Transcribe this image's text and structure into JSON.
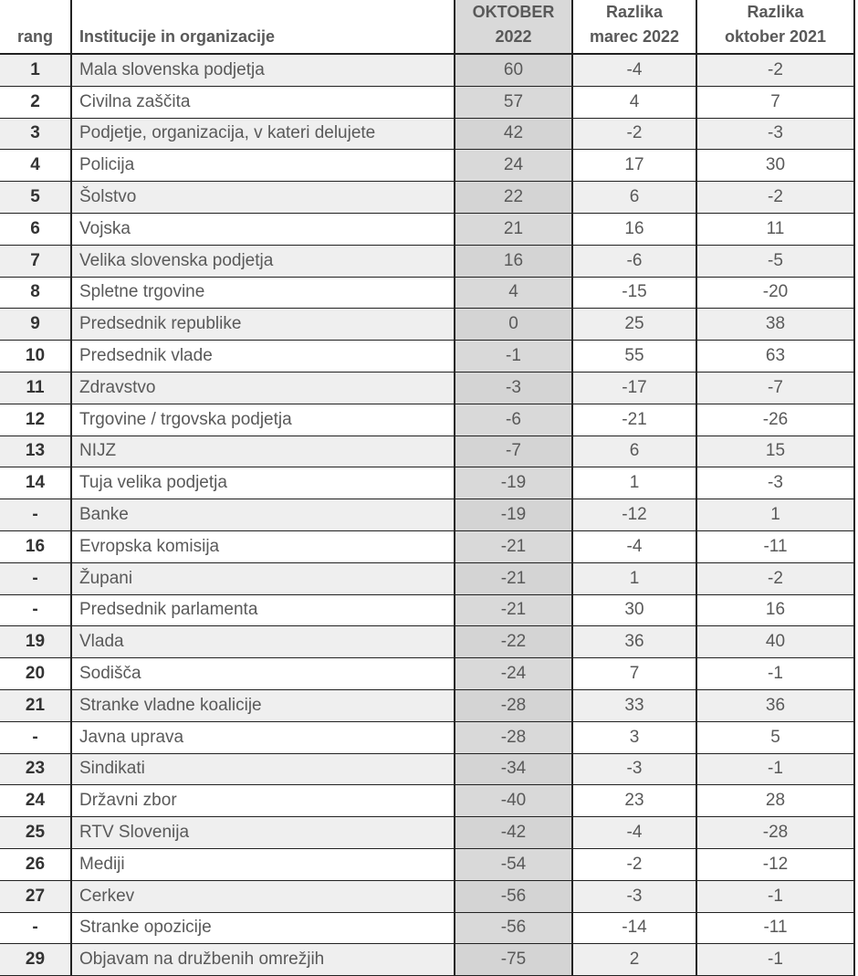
{
  "headers": {
    "rank": "rang",
    "name": "Institucije in organizacije",
    "okt2022": [
      "OKTOBER",
      "2022"
    ],
    "diff_mar2022": [
      "Razlika",
      "marec 2022"
    ],
    "diff_okt2021": [
      "Razlika",
      "oktober 2021"
    ]
  },
  "rows": [
    [
      "1",
      "Mala slovenska podjetja",
      "60",
      "-4",
      "-2"
    ],
    [
      "2",
      "Civilna zaščita",
      "57",
      "4",
      "7"
    ],
    [
      "3",
      "Podjetje, organizacija, v kateri delujete",
      "42",
      "-2",
      "-3"
    ],
    [
      "4",
      "Policija",
      "24",
      "17",
      "30"
    ],
    [
      "5",
      "Šolstvo",
      "22",
      "6",
      "-2"
    ],
    [
      "6",
      "Vojska",
      "21",
      "16",
      "11"
    ],
    [
      "7",
      "Velika slovenska podjetja",
      "16",
      "-6",
      "-5"
    ],
    [
      "8",
      "Spletne trgovine",
      "4",
      "-15",
      "-20"
    ],
    [
      "9",
      "Predsednik republike",
      "0",
      "25",
      "38"
    ],
    [
      "10",
      "Predsednik vlade",
      "-1",
      "55",
      "63"
    ],
    [
      "11",
      "Zdravstvo",
      "-3",
      "-17",
      "-7"
    ],
    [
      "12",
      "Trgovine / trgovska podjetja",
      "-6",
      "-21",
      "-26"
    ],
    [
      "13",
      "NIJZ",
      "-7",
      "6",
      "15"
    ],
    [
      "14",
      "Tuja velika podjetja",
      "-19",
      "1",
      "-3"
    ],
    [
      "-",
      "Banke",
      "-19",
      "-12",
      "1"
    ],
    [
      "16",
      "Evropska komisija",
      "-21",
      "-4",
      "-11"
    ],
    [
      "-",
      "Župani",
      "-21",
      "1",
      "-2"
    ],
    [
      "-",
      "Predsednik parlamenta",
      "-21",
      "30",
      "16"
    ],
    [
      "19",
      "Vlada",
      "-22",
      "36",
      "40"
    ],
    [
      "20",
      "Sodišča",
      "-24",
      "7",
      "-1"
    ],
    [
      "21",
      "Stranke vladne koalicije",
      "-28",
      "33",
      "36"
    ],
    [
      "-",
      "Javna uprava",
      "-28",
      "3",
      "5"
    ],
    [
      "23",
      "Sindikati",
      "-34",
      "-3",
      "-1"
    ],
    [
      "24",
      "Državni zbor",
      "-40",
      "23",
      "28"
    ],
    [
      "25",
      "RTV Slovenija",
      "-42",
      "-4",
      "-28"
    ],
    [
      "26",
      "Mediji",
      "-54",
      "-2",
      "-12"
    ],
    [
      "27",
      "Cerkev",
      "-56",
      "-3",
      "-1"
    ],
    [
      "-",
      "Stranke opozicije",
      "-56",
      "-14",
      "-11"
    ],
    [
      "29",
      "Objavam na družbenih omrežjih",
      "-75",
      "2",
      "-1"
    ]
  ]
}
